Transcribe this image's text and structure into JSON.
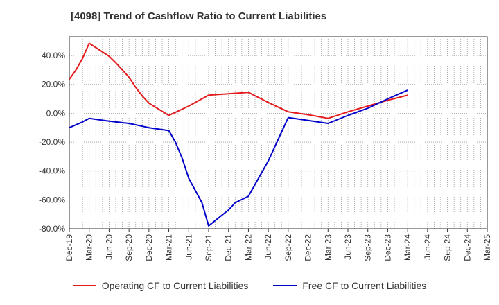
{
  "title": "[4098]  Trend of Cashflow Ratio to Current Liabilities",
  "chart_data": {
    "type": "line",
    "title": "[4098]  Trend of Cashflow Ratio to Current Liabilities",
    "x": [
      "Dec-19",
      "Mar-20",
      "Jun-20",
      "Sep-20",
      "Dec-20",
      "Mar-21",
      "Jun-21",
      "Sep-21",
      "Dec-21",
      "Mar-22",
      "Jun-22",
      "Sep-22",
      "Dec-22",
      "Mar-23",
      "Jun-23",
      "Sep-23",
      "Dec-23",
      "Mar-24",
      "Jun-24",
      "Sep-24",
      "Dec-24",
      "Mar-25"
    ],
    "ylim": [
      -80,
      53
    ],
    "yticks": [
      -80,
      -60,
      -40,
      -20,
      0,
      20,
      40
    ],
    "ytick_labels": [
      "-80.0%",
      "-60.0%",
      "-40.0%",
      "-20.0%",
      "0.0%",
      "20.0%",
      "40.0%"
    ],
    "grid": true,
    "legend_position": "bottom",
    "series": [
      {
        "name": "Operating CF to Current Liabilities",
        "color": "#e41a1c",
        "points": [
          [
            "Dec-19",
            23.5
          ],
          [
            "Jan-20",
            30
          ],
          [
            "Feb-20",
            38
          ],
          [
            "Mar-20",
            48.5
          ],
          [
            "Jun-20",
            39.5
          ],
          [
            "Jul-20",
            35
          ],
          [
            "Aug-20",
            30
          ],
          [
            "Sep-20",
            25
          ],
          [
            "Oct-20",
            18
          ],
          [
            "Nov-20",
            12
          ],
          [
            "Dec-20",
            7
          ],
          [
            "Mar-21",
            -1.5
          ],
          [
            "Jun-21",
            5
          ],
          [
            "Sep-21",
            12.5
          ],
          [
            "Dec-21",
            13.5
          ],
          [
            "Mar-22",
            14.5
          ],
          [
            "Jun-22",
            7.5
          ],
          [
            "Sep-22",
            1
          ],
          [
            "Dec-22",
            -1
          ],
          [
            "Mar-23",
            -3.5
          ],
          [
            "Jun-23",
            1
          ],
          [
            "Sep-23",
            5
          ],
          [
            "Dec-23",
            9
          ],
          [
            "Mar-24",
            12.5
          ]
        ]
      },
      {
        "name": "Free CF to Current Liabilities",
        "color": "#0000cc",
        "points": [
          [
            "Dec-19",
            -10
          ],
          [
            "Feb-20",
            -6
          ],
          [
            "Mar-20",
            -3.5
          ],
          [
            "Jun-20",
            -5.5
          ],
          [
            "Sep-20",
            -7
          ],
          [
            "Dec-20",
            -10
          ],
          [
            "Mar-21",
            -12
          ],
          [
            "Apr-21",
            -20
          ],
          [
            "May-21",
            -31
          ],
          [
            "Jun-21",
            -45
          ],
          [
            "Aug-21",
            -62
          ],
          [
            "Sep-21",
            -78
          ],
          [
            "Dec-21",
            -67
          ],
          [
            "Jan-22",
            -62
          ],
          [
            "Mar-22",
            -57.5
          ],
          [
            "Jun-22",
            -33
          ],
          [
            "Sep-22",
            -3
          ],
          [
            "Dec-22",
            -5
          ],
          [
            "Mar-23",
            -7
          ],
          [
            "Jun-23",
            -1.5
          ],
          [
            "Sep-23",
            3.5
          ],
          [
            "Dec-23",
            10
          ],
          [
            "Mar-24",
            16
          ]
        ]
      }
    ]
  }
}
